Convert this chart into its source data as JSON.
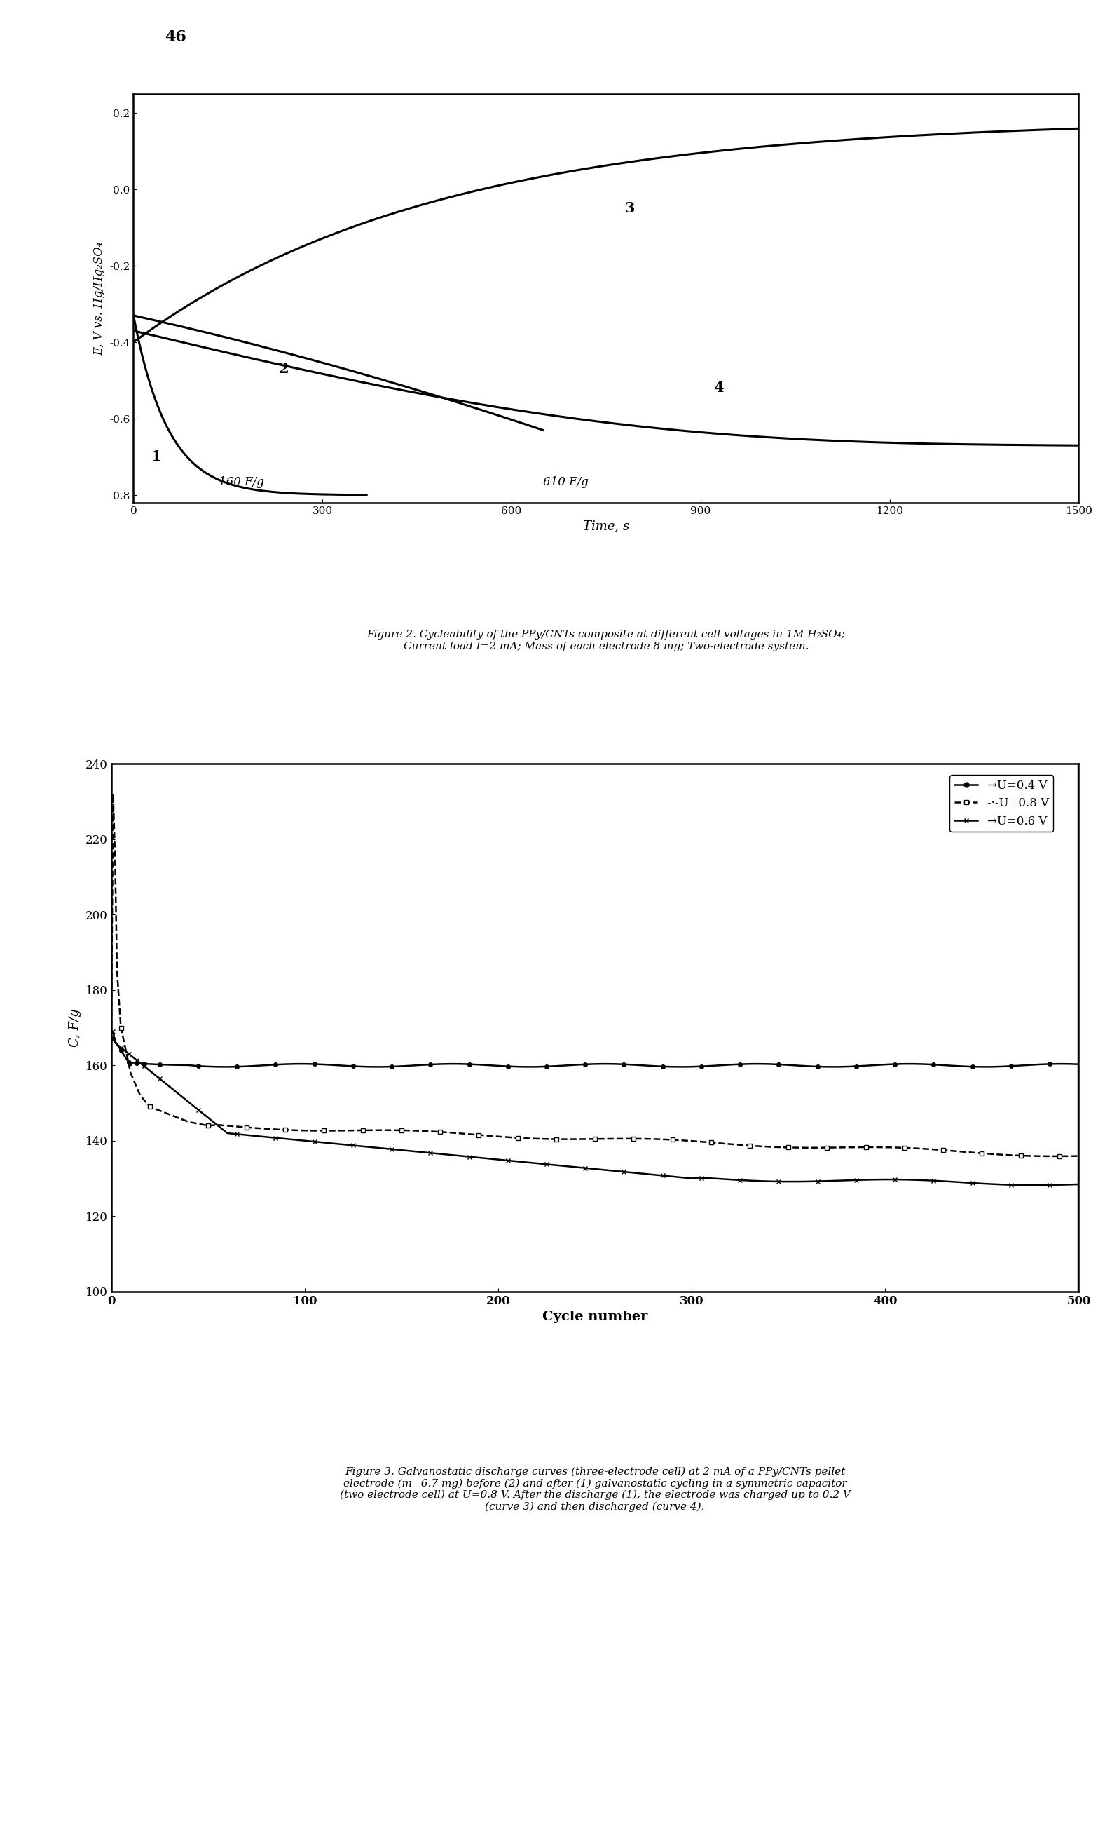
{
  "page_number": "46",
  "fig1_ylabel": "E, V vs. Hg/Hg₂SO₄",
  "fig1_xlabel": "Time, s",
  "fig1_xlim": [
    0,
    1500
  ],
  "fig1_ylim": [
    -0.82,
    0.25
  ],
  "fig1_yticks": [
    0.2,
    0.0,
    -0.2,
    -0.4,
    -0.6,
    -0.8
  ],
  "fig1_xticks": [
    0,
    300,
    600,
    900,
    1200,
    1500
  ],
  "fig1_annotation1": "160 F/g",
  "fig1_annotation2": "610 F/g",
  "fig1_caption": "Figure 2. Cycleability of the PPy/CNTs composite at different cell voltages in 1M H₂SO₄;\nCurrent load I=2 mA; Mass of each electrode 8 mg; Two-electrode system.",
  "fig2_ylabel": "C, F/g",
  "fig2_xlabel": "Cycle number",
  "fig2_xlim": [
    0,
    500
  ],
  "fig2_ylim": [
    100,
    240
  ],
  "fig2_yticks": [
    100,
    120,
    140,
    160,
    180,
    200,
    220,
    240
  ],
  "fig2_xticks": [
    0,
    100,
    200,
    300,
    400,
    500
  ],
  "fig2_legend": [
    "→U=0.4 V",
    "-·-U=0.8 V",
    "→U=0.6 V"
  ],
  "fig2_legend_labels": [
    "U=0.4 V",
    "U=0.8 V",
    "U=0.6 V"
  ],
  "fig2_caption": "Figure 3. Galvanostatic discharge curves (three-electrode cell) at 2 mA of a PPy/CNTs pellet\nelectrode (m=6.7 mg) before (2) and after (1) galvanostatic cycling in a symmetric capacitor\n(two electrode cell) at U=0.8 V. After the discharge (1), the electrode was charged up to 0.2 V\n(curve 3) and then discharged (curve 4).",
  "background_color": "#ffffff",
  "line_color": "#000000"
}
